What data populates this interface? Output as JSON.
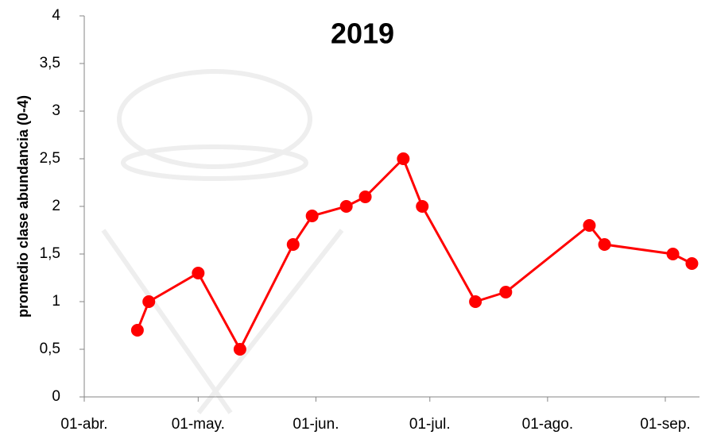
{
  "chart_data": {
    "type": "line",
    "title": "2019",
    "y_label": "promedio clase abundancia (0-4)",
    "x": [
      14,
      17,
      30,
      41,
      55,
      60,
      69,
      74,
      84,
      89,
      103,
      111,
      133,
      137,
      155,
      160
    ],
    "values": [
      0.7,
      1.0,
      1.3,
      0.5,
      1.6,
      1.9,
      2.0,
      2.1,
      2.5,
      2.0,
      1.0,
      1.1,
      1.8,
      1.6,
      1.5,
      1.4
    ],
    "color": "#ff0000",
    "xlim": [
      0,
      162
    ],
    "xticks": [
      {
        "value": 0,
        "label": "01-abr."
      },
      {
        "value": 30,
        "label": "01-may."
      },
      {
        "value": 61,
        "label": "01-jun."
      },
      {
        "value": 91,
        "label": "01-jul."
      },
      {
        "value": 122,
        "label": "01-ago."
      },
      {
        "value": 153,
        "label": "01-sep."
      }
    ],
    "ylim": [
      0,
      4
    ],
    "yticks": [
      0,
      {
        "value": 0.5,
        "label": "0,5"
      },
      1,
      {
        "value": 1.5,
        "label": "1,5"
      },
      2,
      {
        "value": 2.5,
        "label": "2,5"
      },
      3,
      {
        "value": 3.5,
        "label": "3,5"
      },
      4
    ],
    "grid": false
  }
}
